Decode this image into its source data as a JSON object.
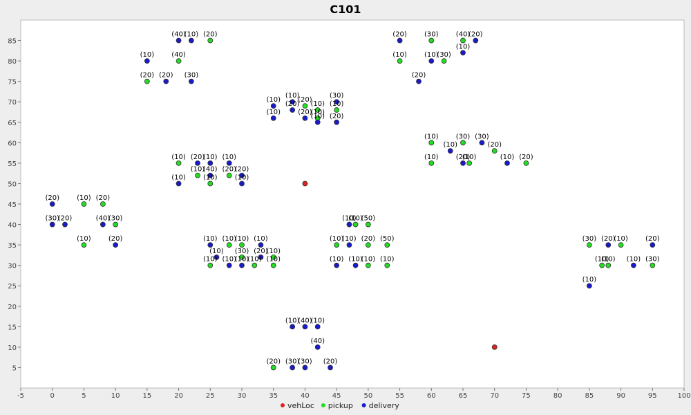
{
  "chart_data": {
    "type": "scatter",
    "title": "C101",
    "xlabel": "",
    "ylabel": "",
    "xlim": [
      -5,
      100
    ],
    "ylim": [
      0,
      90
    ],
    "xticks": [
      -5,
      0,
      5,
      10,
      15,
      20,
      25,
      30,
      35,
      40,
      45,
      50,
      55,
      60,
      65,
      70,
      75,
      80,
      85,
      90,
      95,
      100
    ],
    "yticks": [
      5,
      10,
      15,
      20,
      25,
      30,
      35,
      40,
      45,
      50,
      55,
      60,
      65,
      70,
      75,
      80,
      85
    ],
    "grid": false,
    "legend_position": "bottom-center",
    "series": [
      {
        "name": "vehLoc",
        "color": "#dd2222",
        "points": [
          {
            "x": 40,
            "y": 50,
            "label": ""
          },
          {
            "x": 70,
            "y": 10,
            "label": ""
          }
        ]
      },
      {
        "name": "pickup",
        "color": "#22dd22",
        "points": [
          {
            "x": 25,
            "y": 85,
            "label": "(20)"
          },
          {
            "x": 20,
            "y": 80,
            "label": "(40)"
          },
          {
            "x": 15,
            "y": 75,
            "label": "(20)"
          },
          {
            "x": 60,
            "y": 85,
            "label": "(30)"
          },
          {
            "x": 65,
            "y": 85,
            "label": "(40)"
          },
          {
            "x": 55,
            "y": 80,
            "label": "(10)"
          },
          {
            "x": 62,
            "y": 80,
            "label": "(30)"
          },
          {
            "x": 40,
            "y": 69,
            "label": "(20)"
          },
          {
            "x": 42,
            "y": 68,
            "label": "(10)"
          },
          {
            "x": 45,
            "y": 68,
            "label": "(10)"
          },
          {
            "x": 42,
            "y": 66,
            "label": "(10)"
          },
          {
            "x": 60,
            "y": 60,
            "label": "(10)"
          },
          {
            "x": 65,
            "y": 60,
            "label": "(30)"
          },
          {
            "x": 70,
            "y": 58,
            "label": "(20)"
          },
          {
            "x": 60,
            "y": 55,
            "label": "(10)"
          },
          {
            "x": 66,
            "y": 55,
            "label": "(10)"
          },
          {
            "x": 75,
            "y": 55,
            "label": "(20)"
          },
          {
            "x": 20,
            "y": 55,
            "label": "(10)"
          },
          {
            "x": 23,
            "y": 52,
            "label": "(10)"
          },
          {
            "x": 28,
            "y": 52,
            "label": "(20)"
          },
          {
            "x": 25,
            "y": 50,
            "label": "(10)"
          },
          {
            "x": 5,
            "y": 45,
            "label": "(10)"
          },
          {
            "x": 8,
            "y": 45,
            "label": "(20)"
          },
          {
            "x": 10,
            "y": 40,
            "label": "(30)"
          },
          {
            "x": 5,
            "y": 35,
            "label": "(10)"
          },
          {
            "x": 48,
            "y": 40,
            "label": "(10)"
          },
          {
            "x": 50,
            "y": 40,
            "label": "(50)"
          },
          {
            "x": 45,
            "y": 35,
            "label": "(10)"
          },
          {
            "x": 50,
            "y": 35,
            "label": "(20)"
          },
          {
            "x": 53,
            "y": 35,
            "label": "(50)"
          },
          {
            "x": 50,
            "y": 30,
            "label": "(10)"
          },
          {
            "x": 53,
            "y": 30,
            "label": "(10)"
          },
          {
            "x": 28,
            "y": 35,
            "label": "(10)"
          },
          {
            "x": 30,
            "y": 35,
            "label": "(10)"
          },
          {
            "x": 25,
            "y": 30,
            "label": "(10)"
          },
          {
            "x": 30,
            "y": 32,
            "label": "(30)"
          },
          {
            "x": 32,
            "y": 30,
            "label": "(10)"
          },
          {
            "x": 35,
            "y": 32,
            "label": "(10)"
          },
          {
            "x": 35,
            "y": 30,
            "label": "(10)"
          },
          {
            "x": 85,
            "y": 35,
            "label": "(30)"
          },
          {
            "x": 90,
            "y": 35,
            "label": "(10)"
          },
          {
            "x": 87,
            "y": 30,
            "label": "(10)"
          },
          {
            "x": 88,
            "y": 30,
            "label": "(10)"
          },
          {
            "x": 95,
            "y": 30,
            "label": "(30)"
          },
          {
            "x": 35,
            "y": 5,
            "label": "(20)"
          }
        ]
      },
      {
        "name": "delivery",
        "color": "#1a1acc",
        "points": [
          {
            "x": 20,
            "y": 85,
            "label": "(40)"
          },
          {
            "x": 22,
            "y": 85,
            "label": "(10)"
          },
          {
            "x": 15,
            "y": 80,
            "label": "(10)"
          },
          {
            "x": 18,
            "y": 75,
            "label": "(20)"
          },
          {
            "x": 22,
            "y": 75,
            "label": "(30)"
          },
          {
            "x": 55,
            "y": 85,
            "label": "(20)"
          },
          {
            "x": 67,
            "y": 85,
            "label": "(20)"
          },
          {
            "x": 60,
            "y": 80,
            "label": "(10)"
          },
          {
            "x": 65,
            "y": 82,
            "label": "(10)"
          },
          {
            "x": 58,
            "y": 75,
            "label": "(20)"
          },
          {
            "x": 38,
            "y": 70,
            "label": "(10)"
          },
          {
            "x": 35,
            "y": 69,
            "label": "(10)"
          },
          {
            "x": 38,
            "y": 68,
            "label": "(20)"
          },
          {
            "x": 45,
            "y": 70,
            "label": "(30)"
          },
          {
            "x": 35,
            "y": 66,
            "label": "(10)"
          },
          {
            "x": 40,
            "y": 66,
            "label": "(20)"
          },
          {
            "x": 42,
            "y": 65,
            "label": "(10)"
          },
          {
            "x": 45,
            "y": 65,
            "label": "(20)"
          },
          {
            "x": 63,
            "y": 58,
            "label": "(10)"
          },
          {
            "x": 68,
            "y": 60,
            "label": "(30)"
          },
          {
            "x": 65,
            "y": 55,
            "label": "(20)"
          },
          {
            "x": 72,
            "y": 55,
            "label": "(10)"
          },
          {
            "x": 23,
            "y": 55,
            "label": "(20)"
          },
          {
            "x": 25,
            "y": 55,
            "label": "(10)"
          },
          {
            "x": 28,
            "y": 55,
            "label": "(10)"
          },
          {
            "x": 25,
            "y": 52,
            "label": "(40)"
          },
          {
            "x": 30,
            "y": 52,
            "label": "(20)"
          },
          {
            "x": 20,
            "y": 50,
            "label": "(10)"
          },
          {
            "x": 30,
            "y": 50,
            "label": "(10)"
          },
          {
            "x": 0,
            "y": 45,
            "label": "(20)"
          },
          {
            "x": 0,
            "y": 40,
            "label": "(30)"
          },
          {
            "x": 2,
            "y": 40,
            "label": "(20)"
          },
          {
            "x": 8,
            "y": 40,
            "label": "(40)"
          },
          {
            "x": 10,
            "y": 35,
            "label": "(20)"
          },
          {
            "x": 47,
            "y": 40,
            "label": "(10)"
          },
          {
            "x": 47,
            "y": 35,
            "label": "(10)"
          },
          {
            "x": 45,
            "y": 30,
            "label": "(10)"
          },
          {
            "x": 48,
            "y": 30,
            "label": "(10)"
          },
          {
            "x": 25,
            "y": 35,
            "label": "(10)"
          },
          {
            "x": 33,
            "y": 35,
            "label": "(10)"
          },
          {
            "x": 26,
            "y": 32,
            "label": "(10)"
          },
          {
            "x": 33,
            "y": 32,
            "label": "(20)"
          },
          {
            "x": 28,
            "y": 30,
            "label": "(10)"
          },
          {
            "x": 30,
            "y": 30,
            "label": "(10)"
          },
          {
            "x": 88,
            "y": 35,
            "label": "(20)"
          },
          {
            "x": 95,
            "y": 35,
            "label": "(20)"
          },
          {
            "x": 92,
            "y": 30,
            "label": "(10)"
          },
          {
            "x": 85,
            "y": 25,
            "label": "(10)"
          },
          {
            "x": 38,
            "y": 15,
            "label": "(10)"
          },
          {
            "x": 40,
            "y": 15,
            "label": "(40)"
          },
          {
            "x": 42,
            "y": 15,
            "label": "(10)"
          },
          {
            "x": 42,
            "y": 10,
            "label": "(40)"
          },
          {
            "x": 38,
            "y": 5,
            "label": "(30)"
          },
          {
            "x": 40,
            "y": 5,
            "label": "(30)"
          },
          {
            "x": 44,
            "y": 5,
            "label": "(20)"
          }
        ]
      }
    ]
  }
}
